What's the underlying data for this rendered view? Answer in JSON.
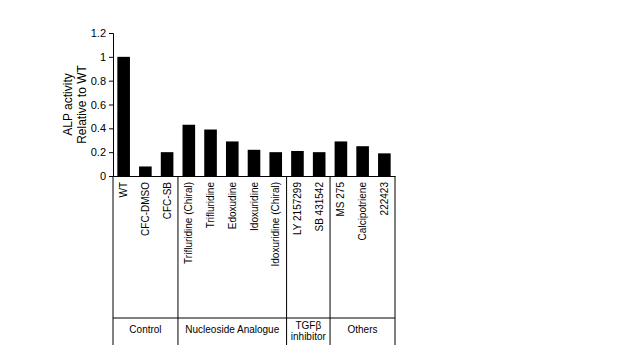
{
  "chart_data": {
    "type": "bar",
    "ylabel": [
      "ALP activity",
      "Relative to WT"
    ],
    "categories": [
      "WT",
      "CFC-DMSO",
      "CFC-SB",
      "Trifluridine (Chiral)",
      "Trifluridine",
      "Edoxudine",
      "Idoxuridine",
      "Idoxuridine (Chiral)",
      "LY 2157299",
      "SB 431542",
      "MS 275",
      "Calcipotriene",
      "222423"
    ],
    "values": [
      1.0,
      0.08,
      0.2,
      0.43,
      0.39,
      0.29,
      0.22,
      0.2,
      0.21,
      0.2,
      0.29,
      0.25,
      0.19
    ],
    "groups": [
      {
        "name": "Control",
        "size": 3
      },
      {
        "name": "Nucleoside Analogue",
        "size": 5
      },
      {
        "name": "TGFβ inhibitor",
        "size": 2
      },
      {
        "name": "Others",
        "size": 3
      }
    ],
    "color": "#000000",
    "ylim": [
      0,
      1.2
    ],
    "yticks": [
      0,
      0.2,
      0.4,
      0.6,
      0.8,
      1,
      1.2
    ],
    "grid": false
  }
}
